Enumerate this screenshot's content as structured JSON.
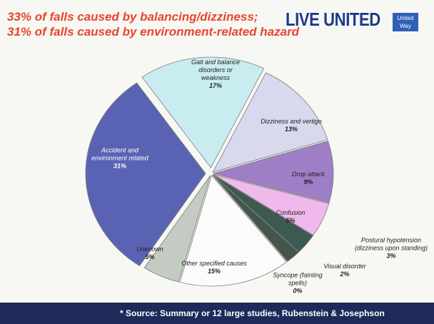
{
  "header": {
    "title_lines": [
      "33% of falls caused by balancing/dizziness;",
      "31% of falls caused by environment-related hazard"
    ],
    "logo": "LIVE UNITED",
    "logo_badge": "United Way"
  },
  "chart_data": {
    "type": "pie",
    "categories": [
      "Gait and balance disorders or weakness",
      "Dizziness and vertigo",
      "Drop attack",
      "Confusion",
      "Postural hypotension (dizziness upon standing)",
      "Visual disorder",
      "Syncope (fainting spells)",
      "Other specified causes",
      "Unknown",
      "Accident and environment related"
    ],
    "values": [
      17,
      13,
      9,
      5,
      3,
      2,
      0,
      15,
      5,
      31
    ],
    "value_labels": [
      "17%",
      "13%",
      "9%",
      "5%",
      "3%",
      "2%",
      "0%",
      "15%",
      "5%",
      "31%"
    ],
    "colors": [
      "#c9ecf1",
      "#d9d9ee",
      "#9e7fc6",
      "#f0b9ec",
      "#3c5a52",
      "#44564a",
      "#8289b3",
      "#fbfbfb",
      "#c3cbc3",
      "#5a63b3"
    ]
  },
  "footer": "* Source: Summary or 12 large studies, Rubenstein & Josephson"
}
